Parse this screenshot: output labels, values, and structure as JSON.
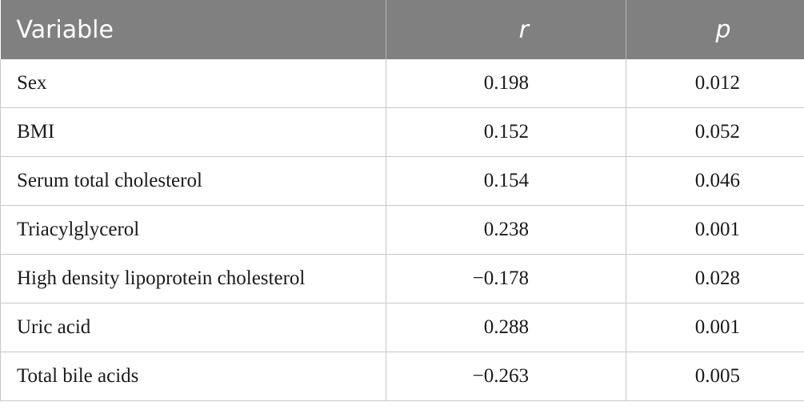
{
  "table": {
    "headers": [
      "Variable",
      "r",
      "p"
    ],
    "rows": [
      {
        "variable": "Sex",
        "r": "0.198",
        "p": "0.012"
      },
      {
        "variable": "BMI",
        "r": "0.152",
        "p": "0.052"
      },
      {
        "variable": "Serum total cholesterol",
        "r": "0.154",
        "p": "0.046"
      },
      {
        "variable": "Triacylglycerol",
        "r": "0.238",
        "p": "0.001"
      },
      {
        "variable": "High density lipoprotein cholesterol",
        "r": "−0.178",
        "p": "0.028"
      },
      {
        "variable": "Uric acid",
        "r": "0.288",
        "p": "0.001"
      },
      {
        "variable": "Total bile acids",
        "r": "−0.263",
        "p": "0.005"
      }
    ]
  }
}
